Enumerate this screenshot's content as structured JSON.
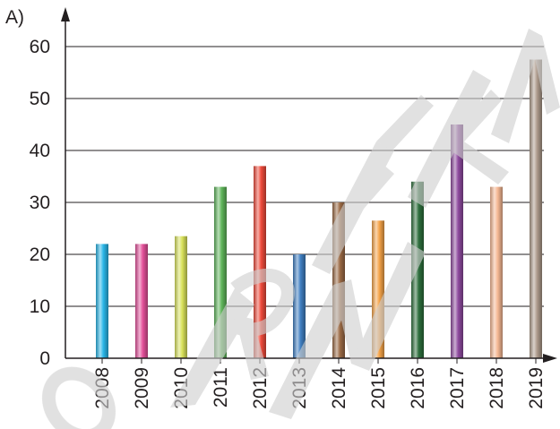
{
  "panel_label": "A)",
  "chart_data": {
    "type": "bar",
    "title": "",
    "xlabel": "",
    "ylabel": "",
    "categories": [
      "2008",
      "2009",
      "2010",
      "2011",
      "2012",
      "2013",
      "2014",
      "2015",
      "2016",
      "2017",
      "2018",
      "2019"
    ],
    "values": [
      22,
      22,
      23.5,
      33,
      37,
      20,
      30,
      26.5,
      34,
      45,
      33,
      57.5
    ],
    "ylim": [
      0,
      60
    ],
    "yticks": [
      "0",
      "10",
      "20",
      "30",
      "40",
      "50",
      "60"
    ],
    "grid": true,
    "legend": "none",
    "bar_colors": [
      "#29b6e8",
      "#e4509a",
      "#d9e25a",
      "#5fb55a",
      "#ef4a3b",
      "#3f7fc2",
      "#9b6a45",
      "#f5a348",
      "#2d6e3c",
      "#8e4a9e",
      "#f6b894",
      "#ad9a8b"
    ],
    "watermark": "ORNEK"
  }
}
